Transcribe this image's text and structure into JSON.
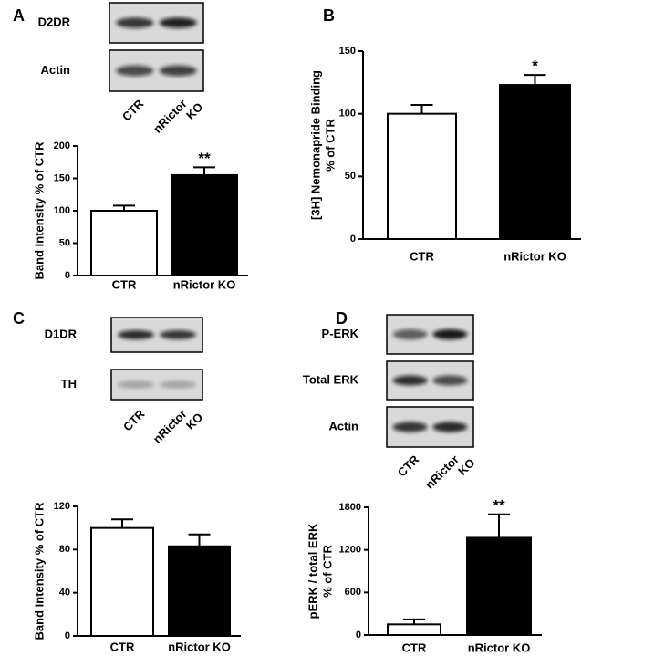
{
  "chart_data": [
    {
      "type": "bar",
      "panel": "A",
      "blot_labels": [
        "D2DR",
        "Actin"
      ],
      "lane_labels": [
        [
          "CTR"
        ],
        [
          "nRictor",
          "KO"
        ]
      ],
      "y_label": [
        "Band Intensity % of CTR"
      ],
      "categories": [
        "CTR",
        "nRictor KO"
      ],
      "values": [
        100,
        155
      ],
      "errors": [
        8,
        12
      ],
      "colors": [
        "#ffffff",
        "#000000"
      ],
      "annotations": [
        null,
        "**"
      ],
      "ylim": [
        0,
        200
      ],
      "yticks": [
        0,
        50,
        100,
        150,
        200
      ]
    },
    {
      "type": "bar",
      "panel": "B",
      "y_label": [
        "[3H] Nemonapride Binding",
        "% of CTR"
      ],
      "categories": [
        "CTR",
        "nRictor KO"
      ],
      "values": [
        100,
        123
      ],
      "errors": [
        7,
        8
      ],
      "colors": [
        "#ffffff",
        "#000000"
      ],
      "annotations": [
        null,
        "*"
      ],
      "ylim": [
        0,
        150
      ],
      "yticks": [
        0,
        50,
        100,
        150
      ]
    },
    {
      "type": "bar",
      "panel": "C",
      "blot_labels": [
        "D1DR",
        "TH"
      ],
      "lane_labels": [
        [
          "CTR"
        ],
        [
          "nRictor",
          "KO"
        ]
      ],
      "y_label": [
        "Band Intensity % of CTR"
      ],
      "categories": [
        "CTR",
        "nRictor KO"
      ],
      "values": [
        100,
        83
      ],
      "errors": [
        8,
        11
      ],
      "colors": [
        "#ffffff",
        "#000000"
      ],
      "ylim": [
        0,
        120
      ],
      "yticks": [
        0,
        40,
        80,
        120
      ]
    },
    {
      "type": "bar",
      "panel": "D",
      "blot_labels": [
        "P-ERK",
        "Total ERK",
        "Actin"
      ],
      "lane_labels": [
        [
          "CTR"
        ],
        [
          "nRictor",
          "KO"
        ]
      ],
      "y_label": [
        "pERK / total ERK",
        "% of CTR"
      ],
      "categories": [
        "CTR",
        "nRictor KO"
      ],
      "values": [
        150,
        1370
      ],
      "errors": [
        70,
        330
      ],
      "colors": [
        "#ffffff",
        "#000000"
      ],
      "annotations": [
        null,
        "**"
      ],
      "ylim": [
        0,
        1800
      ],
      "yticks": [
        0,
        600,
        1200,
        1800
      ]
    }
  ]
}
